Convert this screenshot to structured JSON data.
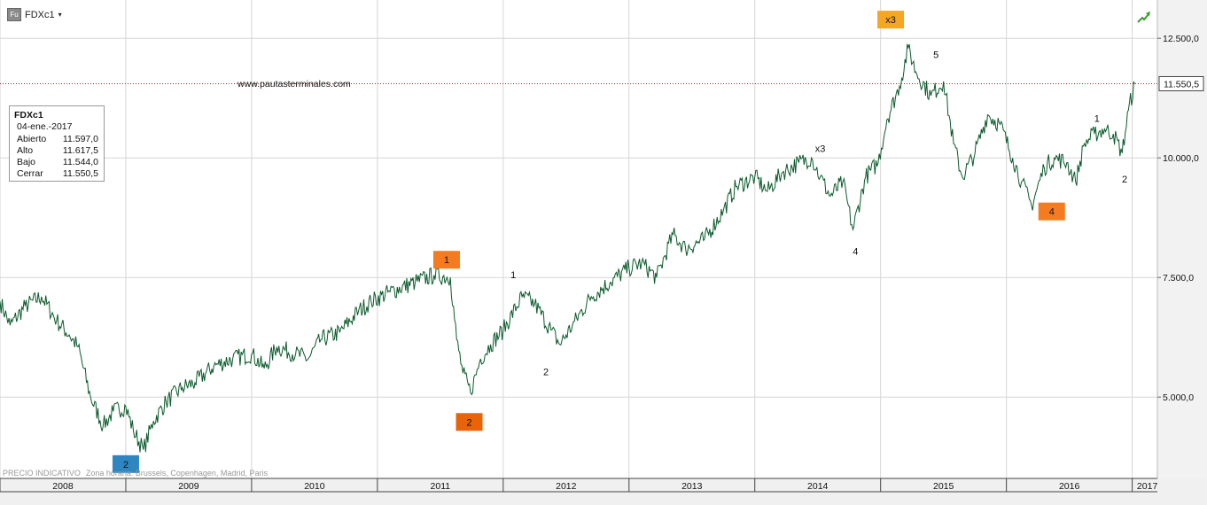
{
  "symbol": {
    "name": "FDXc1",
    "badge": "Fu",
    "caret": "▾"
  },
  "icons": {
    "trend": "trend-up-arrow-icon"
  },
  "colors": {
    "line": "#0b5a2b",
    "grid": "#d6d6d6",
    "lastline": "#9a2a2a",
    "orange": "#f47b20",
    "darkorange": "#e8630a",
    "amber": "#f5a623",
    "blue": "#2e86c1"
  },
  "infobox": {
    "title": "FDXc1",
    "date": "04-ene.-2017",
    "rows": [
      {
        "label": "Abierto",
        "value": "11.597,0"
      },
      {
        "label": "Alto",
        "value": "11.617,5"
      },
      {
        "label": "Bajo",
        "value": "11.544,0"
      },
      {
        "label": "Cerrar",
        "value": "11.550,5"
      }
    ]
  },
  "watermark": "www.pautasterminales.com",
  "footer": {
    "label": "PRECIO INDICATIVO",
    "sub": "Zona horaria: Brussels, Copenhagen, Madrid, Paris"
  },
  "chart_data": {
    "type": "line",
    "title": "",
    "xlabel": "",
    "ylabel": "",
    "x_ticks": [
      "2008",
      "2009",
      "2010",
      "2011",
      "2012",
      "2013",
      "2014",
      "2015",
      "2016",
      "2017"
    ],
    "y_ticks": [
      "5.000,0",
      "7.500,0",
      "10.000,0",
      "12.500,0"
    ],
    "ylim": [
      3300,
      13300
    ],
    "xlim": [
      2008.0,
      2017.2
    ],
    "grid": true,
    "last_value": 11550.5,
    "last_value_label": "11.550,5",
    "series": [
      {
        "values": [
          [
            2008.0,
            7000
          ],
          [
            2008.08,
            6500
          ],
          [
            2008.2,
            6900
          ],
          [
            2008.33,
            7100
          ],
          [
            2008.45,
            6600
          ],
          [
            2008.55,
            6300
          ],
          [
            2008.62,
            6050
          ],
          [
            2008.72,
            5000
          ],
          [
            2008.82,
            4400
          ],
          [
            2008.9,
            4700
          ],
          [
            2009.0,
            4800
          ],
          [
            2009.06,
            4300
          ],
          [
            2009.14,
            3900
          ],
          [
            2009.22,
            4500
          ],
          [
            2009.32,
            4900
          ],
          [
            2009.45,
            5200
          ],
          [
            2009.55,
            5300
          ],
          [
            2009.7,
            5650
          ],
          [
            2009.85,
            5800
          ],
          [
            2010.0,
            5900
          ],
          [
            2010.1,
            5600
          ],
          [
            2010.2,
            6050
          ],
          [
            2010.35,
            5900
          ],
          [
            2010.45,
            5800
          ],
          [
            2010.55,
            6200
          ],
          [
            2010.7,
            6350
          ],
          [
            2010.85,
            6800
          ],
          [
            2010.95,
            7000
          ],
          [
            2011.1,
            7200
          ],
          [
            2011.3,
            7400
          ],
          [
            2011.45,
            7550
          ],
          [
            2011.58,
            7500
          ],
          [
            2011.63,
            6200
          ],
          [
            2011.68,
            5500
          ],
          [
            2011.74,
            5100
          ],
          [
            2011.82,
            5800
          ],
          [
            2011.9,
            6100
          ],
          [
            2012.0,
            6400
          ],
          [
            2012.15,
            7100
          ],
          [
            2012.25,
            6950
          ],
          [
            2012.38,
            6400
          ],
          [
            2012.45,
            6100
          ],
          [
            2012.55,
            6500
          ],
          [
            2012.7,
            7100
          ],
          [
            2012.85,
            7400
          ],
          [
            2013.0,
            7700
          ],
          [
            2013.1,
            7800
          ],
          [
            2013.22,
            7500
          ],
          [
            2013.35,
            8400
          ],
          [
            2013.45,
            8100
          ],
          [
            2013.6,
            8300
          ],
          [
            2013.75,
            8900
          ],
          [
            2013.85,
            9400
          ],
          [
            2014.0,
            9600
          ],
          [
            2014.1,
            9300
          ],
          [
            2014.22,
            9700
          ],
          [
            2014.35,
            9900
          ],
          [
            2014.45,
            10000
          ],
          [
            2014.52,
            9600
          ],
          [
            2014.6,
            9200
          ],
          [
            2014.7,
            9500
          ],
          [
            2014.78,
            8500
          ],
          [
            2014.88,
            9600
          ],
          [
            2014.98,
            9900
          ],
          [
            2015.05,
            10800
          ],
          [
            2015.15,
            11500
          ],
          [
            2015.22,
            12300
          ],
          [
            2015.28,
            11800
          ],
          [
            2015.4,
            11300
          ],
          [
            2015.5,
            11600
          ],
          [
            2015.58,
            10300
          ],
          [
            2015.65,
            9600
          ],
          [
            2015.75,
            10100
          ],
          [
            2015.85,
            10900
          ],
          [
            2015.95,
            10700
          ],
          [
            2016.05,
            10000
          ],
          [
            2016.12,
            9500
          ],
          [
            2016.2,
            9000
          ],
          [
            2016.3,
            9800
          ],
          [
            2016.38,
            10000
          ],
          [
            2016.48,
            9900
          ],
          [
            2016.55,
            9500
          ],
          [
            2016.62,
            10300
          ],
          [
            2016.7,
            10500
          ],
          [
            2016.78,
            10600
          ],
          [
            2016.85,
            10500
          ],
          [
            2016.92,
            10100
          ],
          [
            2016.97,
            11000
          ],
          [
            2017.02,
            11550
          ]
        ]
      }
    ],
    "annotations": [
      {
        "text": "1",
        "x": 2011.55,
        "y": 7870,
        "box": "orange"
      },
      {
        "text": "2",
        "x": 2011.73,
        "y": 4480,
        "box": "darkorange"
      },
      {
        "text": "2",
        "x": 2009.0,
        "y": 3600,
        "box": "blue"
      },
      {
        "text": "1",
        "x": 2012.08,
        "y": 7560,
        "box": ""
      },
      {
        "text": "2",
        "x": 2012.34,
        "y": 5530,
        "box": ""
      },
      {
        "text": "x3",
        "x": 2014.52,
        "y": 10200,
        "box": ""
      },
      {
        "text": "4",
        "x": 2014.8,
        "y": 8050,
        "box": ""
      },
      {
        "text": "x3",
        "x": 2015.08,
        "y": 12890,
        "box": "amber"
      },
      {
        "text": "5",
        "x": 2015.44,
        "y": 12160,
        "box": ""
      },
      {
        "text": "4",
        "x": 2016.36,
        "y": 8880,
        "box": "orange"
      },
      {
        "text": "1",
        "x": 2016.72,
        "y": 10830,
        "box": ""
      },
      {
        "text": "2",
        "x": 2016.94,
        "y": 9560,
        "box": ""
      }
    ]
  }
}
